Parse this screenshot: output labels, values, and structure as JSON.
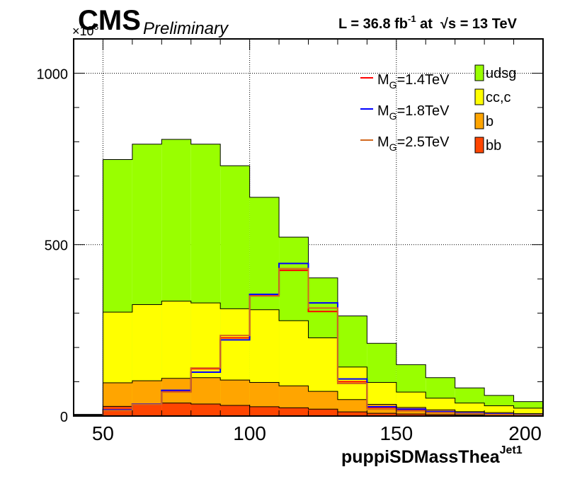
{
  "header": {
    "experiment": "CMS",
    "status": "Preliminary",
    "lumi_prefix": "L = 36.8 fb",
    "lumi_exp": "-1",
    "lumi_mid": " at  ",
    "sqrt_symbol": "√",
    "energy": "s = 13 TeV"
  },
  "chart_data": {
    "type": "bar",
    "stacked": true,
    "bin_edges": [
      40,
      50,
      60,
      70,
      80,
      90,
      100,
      110,
      120,
      130,
      140,
      150,
      160,
      170,
      180,
      190,
      200
    ],
    "xlim": [
      40,
      200
    ],
    "ylim": [
      0,
      1100
    ],
    "y_multiplier_label": "×10",
    "y_multiplier_exp": "3",
    "x_ticks": [
      50,
      100,
      150,
      200
    ],
    "y_ticks": [
      0,
      500,
      1000
    ],
    "xlabel": "puppiSDMassThea",
    "xlabel_sup": "Jet1",
    "grid": true,
    "legend_position": "top-right",
    "stack_series": [
      {
        "name": "bb",
        "color": "#ff4500",
        "values": [
          2,
          28,
          33,
          38,
          35,
          31,
          27,
          24,
          20,
          12,
          8,
          6,
          4,
          3,
          2,
          1
        ]
      },
      {
        "name": "b",
        "color": "#ffa500",
        "values": [
          3,
          97,
          103,
          110,
          112,
          105,
          98,
          88,
          72,
          48,
          34,
          25,
          18,
          13,
          10,
          7
        ]
      },
      {
        "name": "cc,c",
        "color": "#ffff00",
        "values": [
          4,
          303,
          325,
          335,
          330,
          313,
          310,
          278,
          228,
          143,
          98,
          70,
          52,
          38,
          30,
          23
        ]
      },
      {
        "name": "udsg",
        "color": "#99ff00",
        "values": [
          5,
          748,
          793,
          807,
          793,
          730,
          638,
          522,
          403,
          292,
          212,
          150,
          112,
          82,
          60,
          42
        ]
      }
    ],
    "overlay_series": [
      {
        "name": "M",
        "sub": "G",
        "suffix": "=1.4TeV",
        "color": "#ff0000",
        "values": [
          0,
          17,
          35,
          72,
          138,
          228,
          353,
          425,
          305,
          100,
          25,
          18,
          12,
          8,
          5,
          3
        ]
      },
      {
        "name": "M",
        "sub": "G",
        "suffix": "=1.8TeV",
        "color": "#0000ff",
        "values": [
          0,
          18,
          35,
          75,
          128,
          222,
          355,
          445,
          330,
          108,
          27,
          20,
          13,
          9,
          6,
          3
        ]
      },
      {
        "name": "M",
        "sub": "G",
        "suffix": "=2.5TeV",
        "color": "#d2691e",
        "values": [
          0,
          16,
          34,
          70,
          140,
          235,
          350,
          430,
          315,
          95,
          20,
          15,
          10,
          7,
          4,
          2
        ]
      }
    ]
  }
}
